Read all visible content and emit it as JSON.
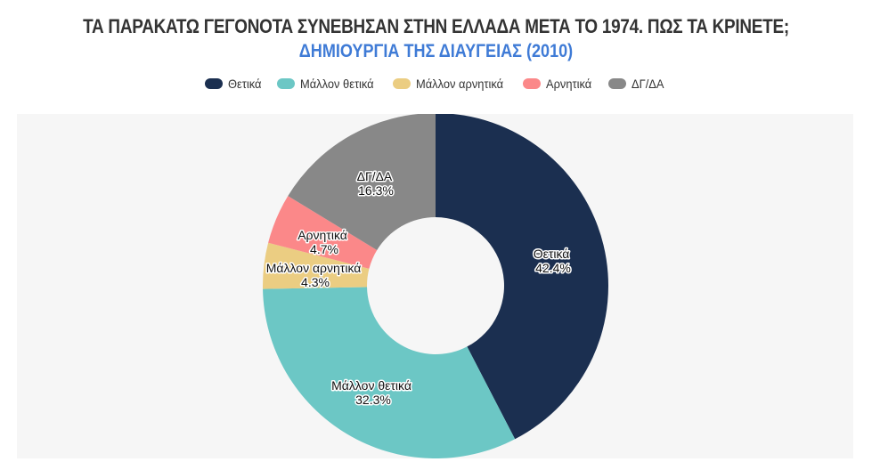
{
  "title": "ΤΑ ΠΑΡΑΚΑΤΩ ΓΕΓΟΝΟΤΑ ΣΥΝΕΒΗΣΑΝ ΣΤΗΝ ΕΛΛΑΔΑ ΜΕΤΑ ΤΟ 1974. ΠΩΣ ΤΑ ΚΡΙΝΕΤΕ;",
  "subtitle": "ΔΗΜΙΟΥΡΓΙΑ ΤΗΣ ΔΙΑΥΓΕΙΑΣ (2010)",
  "legend": [
    {
      "label": "Θετικά",
      "color": "#1b2f50"
    },
    {
      "label": "Μάλλον θετικά",
      "color": "#6cc7c5"
    },
    {
      "label": "Μάλλον αρνητικά",
      "color": "#ebcd82"
    },
    {
      "label": "Αρνητικά",
      "color": "#fb8889"
    },
    {
      "label": "ΔΓ/ΔΑ",
      "color": "#888888"
    }
  ],
  "slices": [
    {
      "label": "Θετικά",
      "value_text": "42.4%"
    },
    {
      "label": "Μάλλον θετικά",
      "value_text": "32.3%"
    },
    {
      "label": "Μάλλον αρνητικά",
      "value_text": "4.3%"
    },
    {
      "label": "Αρνητικά",
      "value_text": "4.7%"
    },
    {
      "label": "ΔΓ/ΔΑ",
      "value_text": "16.3%"
    }
  ],
  "chart_data": {
    "type": "pie",
    "variant": "donut",
    "title": "ΤΑ ΠΑΡΑΚΑΤΩ ΓΕΓΟΝΟΤΑ ΣΥΝΕΒΗΣΑΝ ΣΤΗΝ ΕΛΛΑΔΑ ΜΕΤΑ ΤΟ 1974. ΠΩΣ ΤΑ ΚΡΙΝΕΤΕ;",
    "subtitle": "ΔΗΜΙΟΥΡΓΙΑ ΤΗΣ ΔΙΑΥΓΕΙΑΣ (2010)",
    "categories": [
      "Θετικά",
      "Μάλλον θετικά",
      "Μάλλον αρνητικά",
      "Αρνητικά",
      "ΔΓ/ΔΑ"
    ],
    "values": [
      42.4,
      32.3,
      4.3,
      4.7,
      16.3
    ],
    "colors": [
      "#1b2f50",
      "#6cc7c5",
      "#ebcd82",
      "#fb8889",
      "#888888"
    ],
    "unit": "%",
    "start_angle_deg": 0,
    "direction": "clockwise",
    "legend_position": "top",
    "data_labels": true
  }
}
